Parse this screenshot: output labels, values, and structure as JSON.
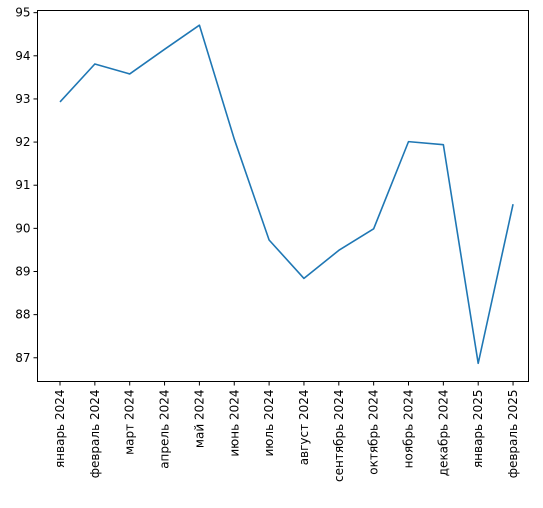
{
  "chart_data": {
    "type": "line",
    "title": "",
    "xlabel": "",
    "ylabel": "",
    "categories": [
      "январь 2024",
      "февраль 2024",
      "март 2024",
      "апрель 2024",
      "май 2024",
      "июнь 2024",
      "июль 2024",
      "август 2024",
      "сентябрь 2024",
      "октябрь 2024",
      "ноябрь 2024",
      "декабрь 2024",
      "январь 2025",
      "февраль 2025"
    ],
    "series": [
      {
        "values": [
          92.93,
          93.81,
          93.58,
          94.15,
          94.71,
          92.07,
          89.73,
          88.84,
          89.49,
          89.99,
          92.01,
          91.94,
          86.87,
          90.56
        ],
        "color": "#1f77b4"
      }
    ],
    "ylim": [
      86.45,
      95.05
    ],
    "yticks": [
      "87",
      "88",
      "89",
      "90",
      "91",
      "92",
      "93",
      "94",
      "95"
    ],
    "grid": false,
    "legend": "none"
  }
}
